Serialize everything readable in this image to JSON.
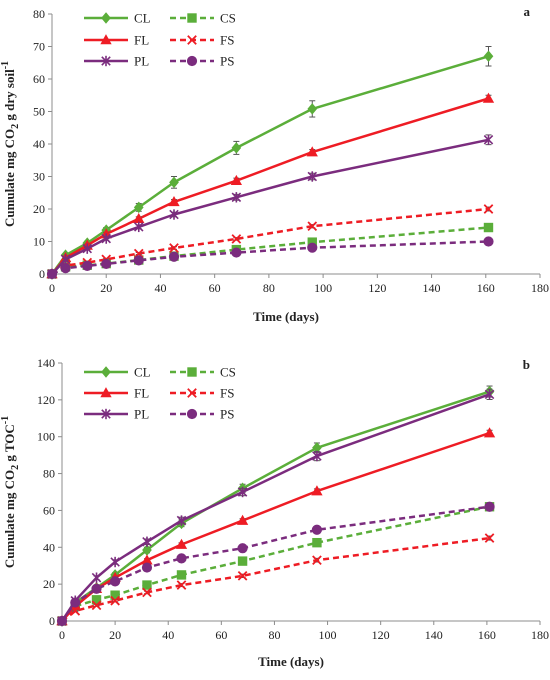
{
  "figure": {
    "series_style": {
      "CL": {
        "color": "#5BAE3A",
        "dash": "solid",
        "marker": "diamond"
      },
      "CS": {
        "color": "#5BAE3A",
        "dash": "dashed",
        "marker": "square"
      },
      "FL": {
        "color": "#EE1C24",
        "dash": "solid",
        "marker": "triangle"
      },
      "FS": {
        "color": "#EE1C24",
        "dash": "dashed",
        "marker": "x"
      },
      "PL": {
        "color": "#7B2C7E",
        "dash": "solid",
        "marker": "star"
      },
      "PS": {
        "color": "#7B2C7E",
        "dash": "dashed",
        "marker": "circle"
      }
    }
  },
  "chart_data": [
    {
      "panel": "a",
      "type": "line",
      "xlabel": "Time (days)",
      "ylabel_parts": [
        "Cumulate mg CO",
        "2",
        " g dry soil",
        "-1"
      ],
      "xlim": [
        0,
        180
      ],
      "ylim": [
        0,
        80
      ],
      "xticks": [
        0,
        20,
        40,
        60,
        80,
        100,
        120,
        140,
        160,
        180
      ],
      "yticks": [
        0,
        10,
        20,
        30,
        40,
        50,
        60,
        70,
        80
      ],
      "grid": false,
      "legend_position": "top-left",
      "x": [
        0,
        5,
        13,
        20,
        32,
        45,
        68,
        96,
        161
      ],
      "series": [
        {
          "name": "CL",
          "values": [
            0,
            5.8,
            9.5,
            13.5,
            20.5,
            28.2,
            38.8,
            50.8,
            67.0
          ],
          "errors": [
            0,
            0.4,
            0.6,
            0.8,
            1.2,
            1.8,
            2.0,
            2.5,
            3.0
          ]
        },
        {
          "name": "CS",
          "values": [
            0,
            2.2,
            2.7,
            3.2,
            4.3,
            5.5,
            7.5,
            9.8,
            14.3
          ],
          "errors": [
            0,
            0.2,
            0.2,
            0.2,
            0.3,
            0.3,
            0.4,
            0.5,
            0.6
          ]
        },
        {
          "name": "FL",
          "values": [
            0,
            5.0,
            8.8,
            12.3,
            17.0,
            22.2,
            28.7,
            37.5,
            54.0
          ],
          "errors": [
            0,
            0.3,
            0.4,
            0.5,
            0.6,
            0.7,
            0.8,
            0.8,
            1.0
          ]
        },
        {
          "name": "FS",
          "values": [
            0,
            2.6,
            3.5,
            4.5,
            6.3,
            8.0,
            10.8,
            14.7,
            20.0
          ],
          "errors": [
            0,
            0.2,
            0.2,
            0.3,
            0.3,
            0.4,
            0.4,
            0.5,
            0.6
          ]
        },
        {
          "name": "PL",
          "values": [
            0,
            4.5,
            7.8,
            10.9,
            14.5,
            18.3,
            23.6,
            30.0,
            41.3
          ],
          "errors": [
            0,
            0.3,
            0.4,
            0.5,
            0.6,
            0.7,
            0.9,
            1.0,
            1.5
          ]
        },
        {
          "name": "PS",
          "values": [
            0,
            1.8,
            2.5,
            3.1,
            4.2,
            5.3,
            6.6,
            8.1,
            10.0
          ],
          "errors": [
            0,
            0.2,
            0.2,
            0.2,
            0.3,
            0.3,
            0.3,
            0.4,
            0.4
          ]
        }
      ]
    },
    {
      "panel": "b",
      "type": "line",
      "xlabel": "Time (days)",
      "ylabel_parts": [
        "Cumulate mg CO",
        "2",
        " g TOC",
        "-1"
      ],
      "xlim": [
        0,
        180
      ],
      "ylim": [
        0,
        140
      ],
      "xticks": [
        0,
        20,
        40,
        60,
        80,
        100,
        120,
        140,
        160,
        180
      ],
      "yticks": [
        0,
        20,
        40,
        60,
        80,
        100,
        120,
        140
      ],
      "grid": false,
      "legend_position": "top-left",
      "x": [
        0,
        5,
        13,
        20,
        32,
        45,
        68,
        96,
        161
      ],
      "series": [
        {
          "name": "CL",
          "values": [
            0,
            10.0,
            18.0,
            25.0,
            38.5,
            53.0,
            72.0,
            94.0,
            124.5
          ],
          "errors": [
            0,
            0.8,
            1.0,
            1.2,
            1.5,
            1.8,
            2.2,
            2.6,
            3.0
          ]
        },
        {
          "name": "CS",
          "values": [
            0,
            8.0,
            11.5,
            14.0,
            19.5,
            25.0,
            32.5,
            42.5,
            62.0
          ],
          "errors": [
            0,
            0.6,
            0.7,
            0.8,
            0.9,
            1.0,
            1.1,
            1.2,
            1.4
          ]
        },
        {
          "name": "FL",
          "values": [
            0,
            8.0,
            17.5,
            23.5,
            33.0,
            41.5,
            54.5,
            70.5,
            102.0
          ],
          "errors": [
            0,
            0.5,
            0.6,
            0.7,
            0.8,
            0.9,
            1.0,
            1.2,
            1.5
          ]
        },
        {
          "name": "FS",
          "values": [
            0,
            5.5,
            8.5,
            11.0,
            15.5,
            19.5,
            24.5,
            33.0,
            45.0
          ],
          "errors": [
            0,
            0.4,
            0.5,
            0.6,
            0.7,
            0.8,
            0.9,
            1.0,
            1.1
          ]
        },
        {
          "name": "PL",
          "values": [
            0,
            11.0,
            23.5,
            32.0,
            43.0,
            54.5,
            70.0,
            89.5,
            123.0
          ],
          "errors": [
            0,
            0.8,
            1.0,
            1.2,
            1.5,
            1.8,
            2.0,
            2.5,
            2.8
          ]
        },
        {
          "name": "PS",
          "values": [
            0,
            10.0,
            17.5,
            21.5,
            29.0,
            34.0,
            39.5,
            49.5,
            62.0
          ],
          "errors": [
            0,
            0.6,
            0.8,
            0.9,
            1.0,
            1.1,
            1.2,
            1.4,
            1.6
          ]
        }
      ]
    }
  ]
}
